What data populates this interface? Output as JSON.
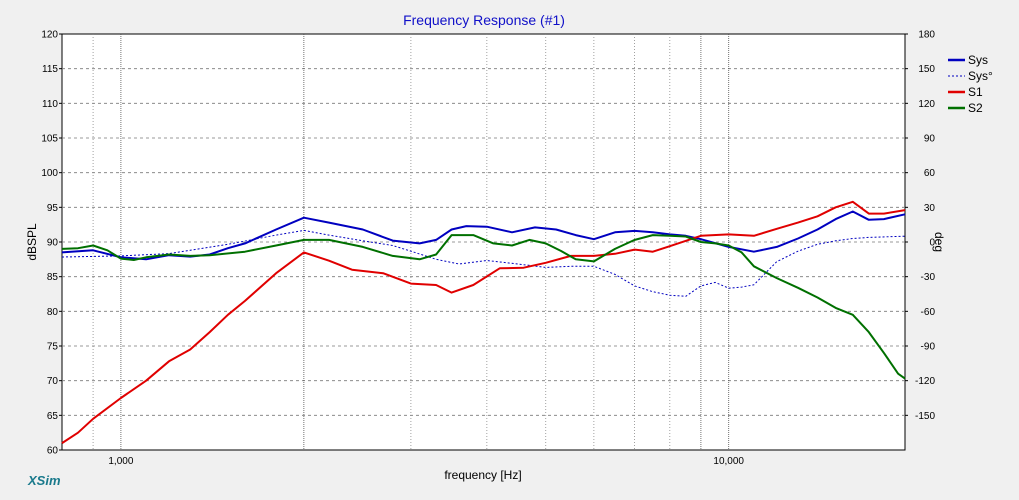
{
  "app": {
    "brand": "XSim"
  },
  "chart_data": {
    "type": "line",
    "title": "Frequency Response (#1)",
    "xlabel": "frequency [Hz]",
    "ylabel": "dBSPL",
    "y2label": "deg",
    "xscale": "log",
    "xlim": [
      800,
      19500
    ],
    "ylim": [
      60,
      120
    ],
    "y2lim": [
      -180,
      180
    ],
    "xticks": [
      1000,
      10000
    ],
    "xtick_labels": [
      "1,000",
      "10,000"
    ],
    "yticks": [
      60,
      65,
      70,
      75,
      80,
      85,
      90,
      95,
      100,
      105,
      110,
      115,
      120
    ],
    "y2ticks": [
      180,
      150,
      120,
      90,
      60,
      30,
      0,
      -30,
      -60,
      -90,
      -120,
      -150
    ],
    "grid": true,
    "legend_position": "right",
    "series": [
      {
        "name": "Sys",
        "color": "#0000c0",
        "style": "solid",
        "axis": "left",
        "x": [
          800,
          900,
          1000,
          1100,
          1200,
          1300,
          1400,
          1500,
          1600,
          1800,
          2000,
          2200,
          2500,
          2800,
          3100,
          3300,
          3500,
          3700,
          4000,
          4400,
          4800,
          5200,
          5600,
          6000,
          6500,
          7000,
          7500,
          8000,
          8500,
          9000,
          10000,
          11000,
          12000,
          13000,
          14000,
          15000,
          16000,
          17000,
          18000,
          19500
        ],
        "y": [
          88.5,
          88.8,
          87.8,
          87.5,
          88.1,
          87.9,
          88.2,
          89.1,
          89.8,
          91.8,
          93.5,
          92.8,
          91.8,
          90.2,
          89.8,
          90.3,
          91.8,
          92.3,
          92.2,
          91.4,
          92.1,
          91.8,
          91.0,
          90.4,
          91.4,
          91.6,
          91.4,
          91.1,
          90.9,
          90.4,
          89.3,
          88.6,
          89.3,
          90.5,
          91.8,
          93.3,
          94.4,
          93.2,
          93.3,
          94.0
        ]
      },
      {
        "name": "Sys°",
        "color": "#0000c0",
        "style": "dotted",
        "axis": "right",
        "x": [
          800,
          1000,
          1200,
          1500,
          1800,
          2000,
          2200,
          2500,
          2800,
          3000,
          3300,
          3600,
          4000,
          4500,
          5000,
          5500,
          6000,
          6500,
          7000,
          7500,
          8000,
          8500,
          9000,
          9500,
          10000,
          10500,
          11000,
          12000,
          13000,
          14000,
          15000,
          16000,
          17000,
          19500
        ],
        "y": [
          -13,
          -12,
          -10,
          -2,
          6,
          10,
          6,
          1,
          -3,
          -8,
          -15,
          -19,
          -16,
          -19,
          -22,
          -21,
          -21,
          -28,
          -38,
          -43,
          -46,
          -47,
          -38,
          -35,
          -40,
          -39,
          -37,
          -17,
          -8,
          -2,
          1,
          3,
          4,
          5
        ]
      },
      {
        "name": "S1",
        "color": "#e00000",
        "style": "solid",
        "axis": "left",
        "x": [
          800,
          850,
          900,
          1000,
          1100,
          1200,
          1300,
          1400,
          1500,
          1600,
          1800,
          2000,
          2200,
          2400,
          2700,
          3000,
          3300,
          3500,
          3800,
          4200,
          4600,
          5000,
          5500,
          6000,
          6500,
          7000,
          7500,
          8000,
          9000,
          10000,
          11000,
          12000,
          13000,
          14000,
          15000,
          16000,
          17000,
          18000,
          19500
        ],
        "y": [
          61.0,
          62.5,
          64.5,
          67.5,
          70.0,
          72.8,
          74.5,
          77.0,
          79.5,
          81.5,
          85.5,
          88.5,
          87.3,
          86.0,
          85.5,
          84.0,
          83.8,
          82.7,
          83.8,
          86.2,
          86.3,
          87.0,
          88.0,
          88.0,
          88.3,
          88.9,
          88.6,
          89.4,
          90.9,
          91.1,
          90.9,
          91.9,
          92.8,
          93.7,
          95.0,
          95.8,
          94.1,
          94.1,
          94.6
        ]
      },
      {
        "name": "S2",
        "color": "#007000",
        "style": "solid",
        "axis": "left",
        "x": [
          800,
          850,
          900,
          950,
          1000,
          1050,
          1100,
          1200,
          1300,
          1400,
          1600,
          1800,
          2000,
          2200,
          2500,
          2800,
          3100,
          3300,
          3500,
          3800,
          4100,
          4400,
          4700,
          5000,
          5300,
          5600,
          6000,
          6500,
          7000,
          7500,
          8000,
          8500,
          9000,
          9500,
          10000,
          10500,
          11000,
          12000,
          13000,
          14000,
          15000,
          16000,
          17000,
          18000,
          19000,
          19500
        ],
        "y": [
          89.0,
          89.1,
          89.5,
          88.8,
          87.6,
          87.4,
          87.8,
          88.2,
          88.0,
          88.1,
          88.6,
          89.5,
          90.3,
          90.3,
          89.3,
          88.0,
          87.5,
          88.2,
          91.0,
          91.0,
          89.8,
          89.5,
          90.3,
          89.8,
          88.7,
          87.5,
          87.2,
          89.0,
          90.3,
          91.0,
          90.9,
          90.8,
          90.0,
          89.8,
          89.5,
          88.5,
          86.5,
          84.8,
          83.4,
          82.0,
          80.5,
          79.5,
          77.0,
          74.0,
          71.0,
          70.3
        ]
      }
    ]
  }
}
